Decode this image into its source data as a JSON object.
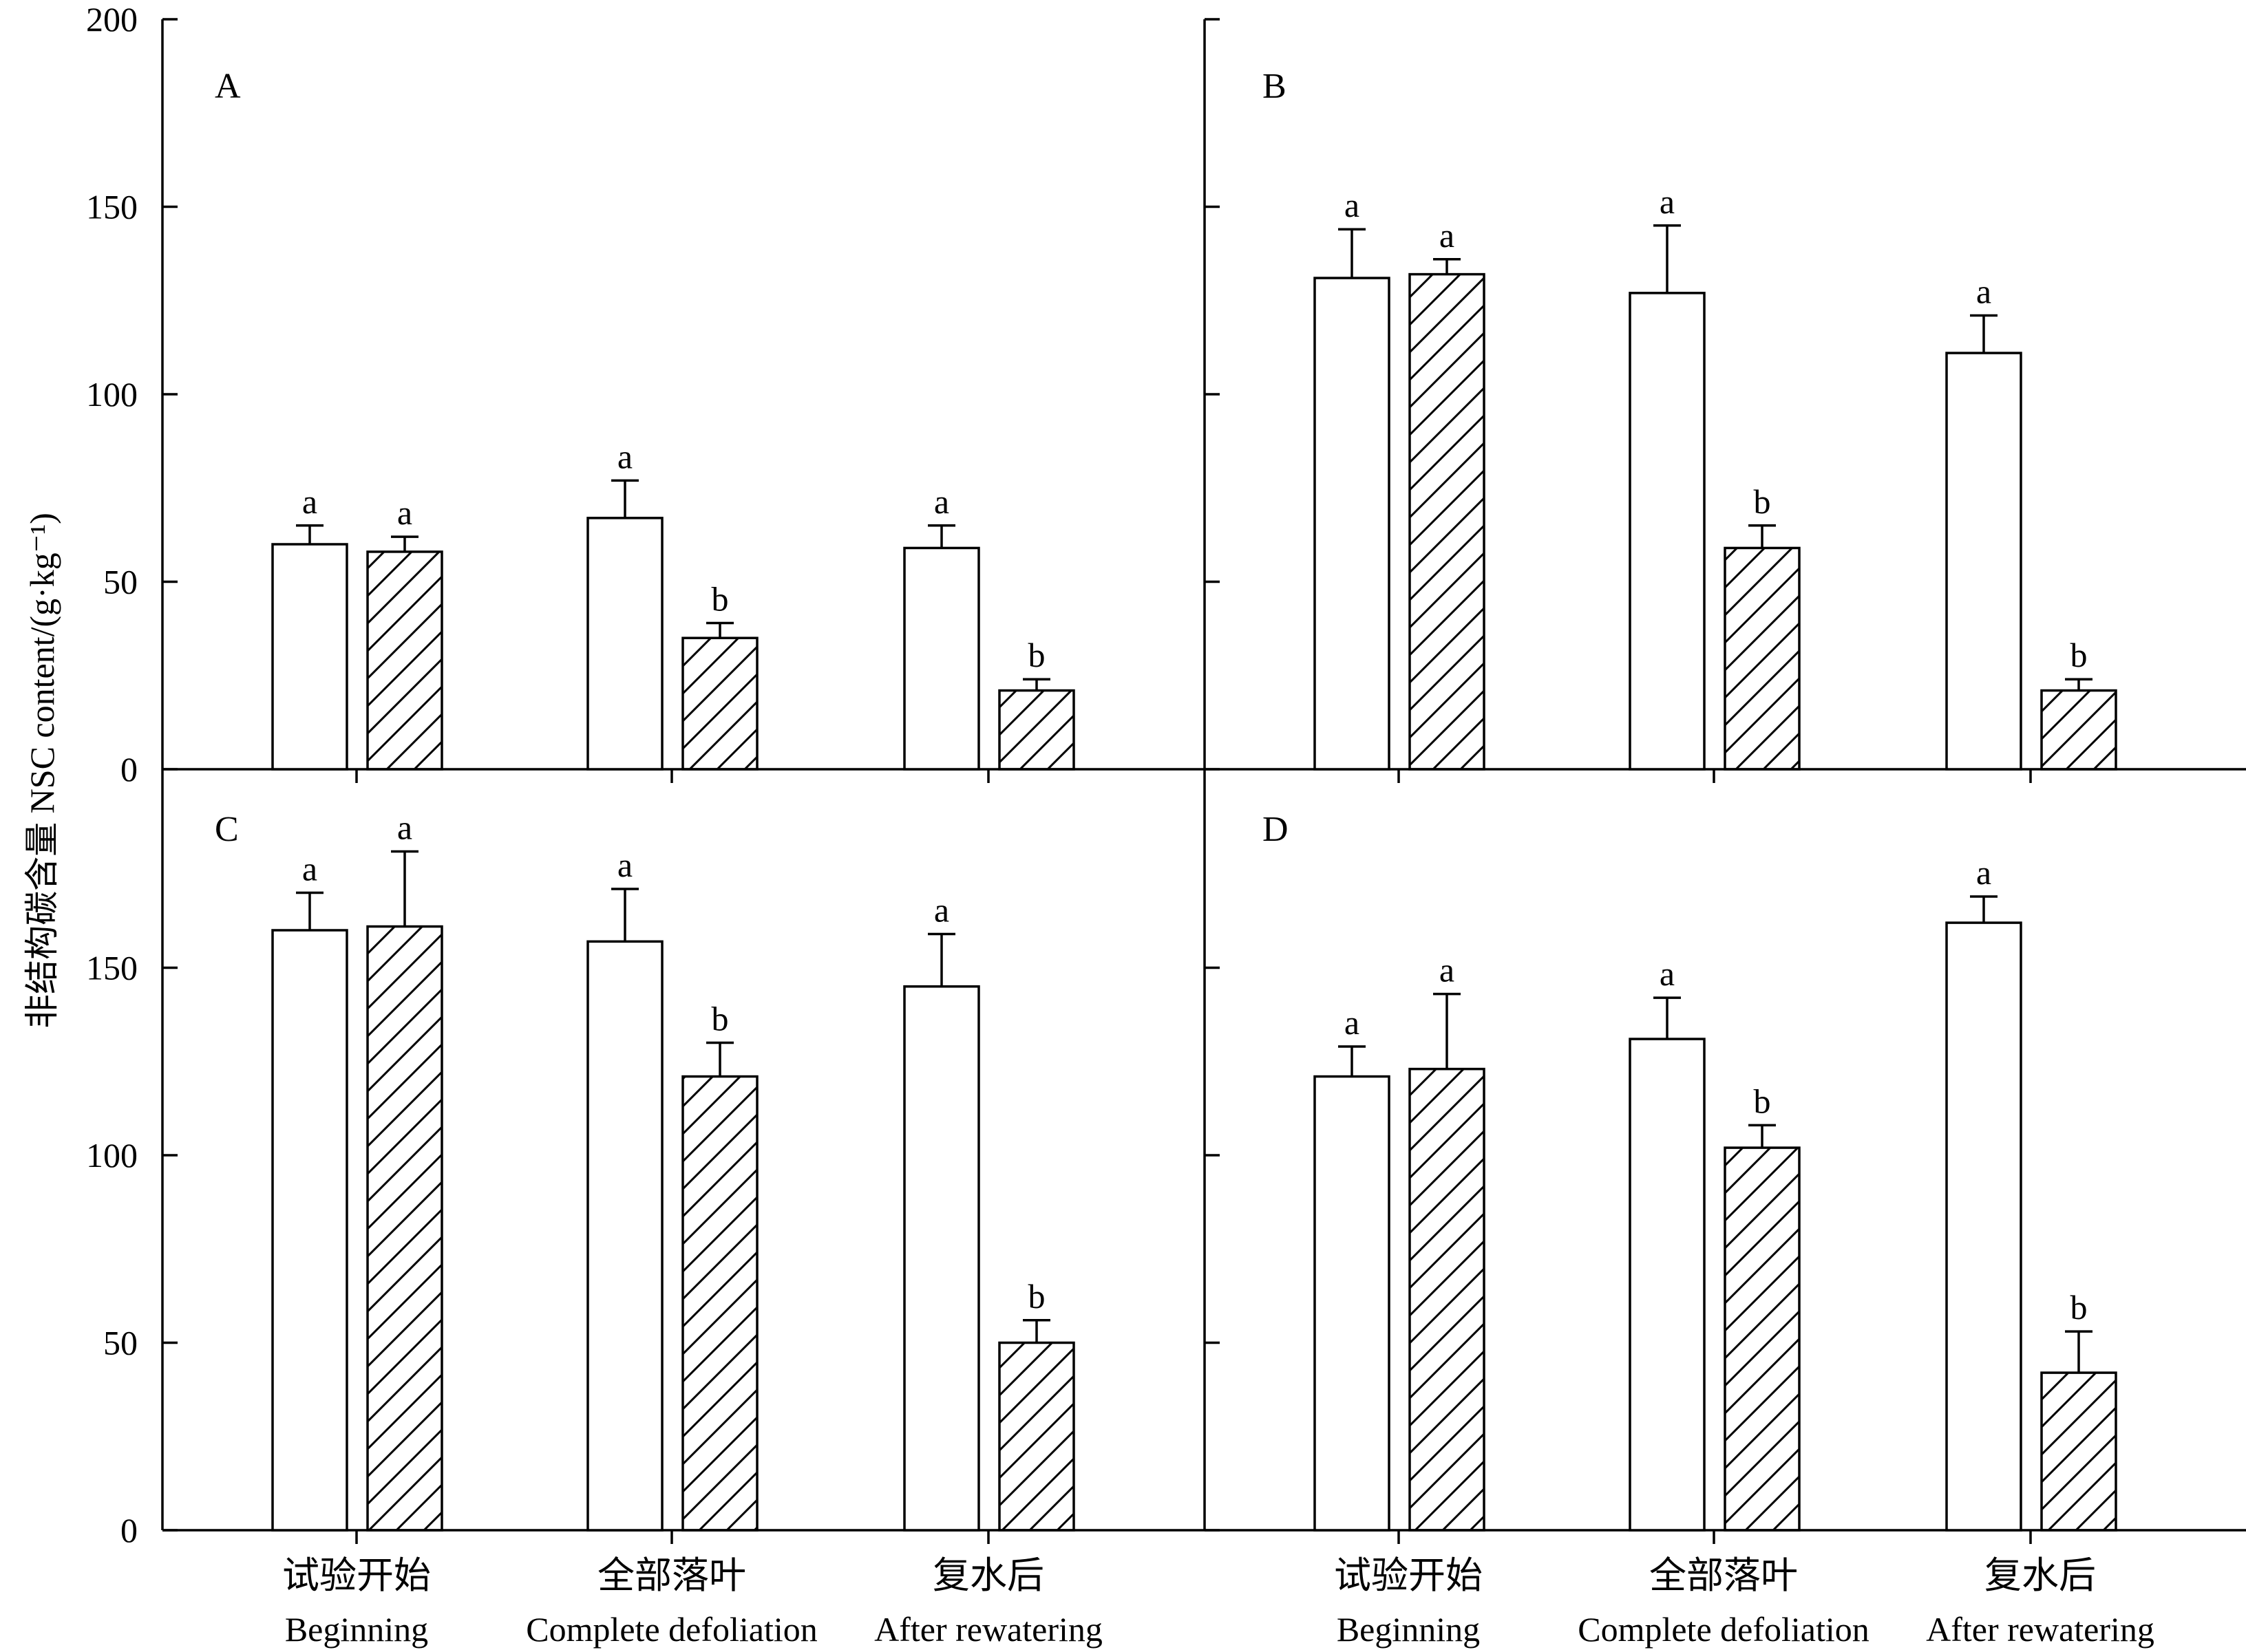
{
  "figure": {
    "y_axis_label": "非结构碳含量 NSC content/(g·kg⁻¹)",
    "groups": [
      {
        "zh": "试验开始",
        "en": "Beginning"
      },
      {
        "zh": "全部落叶",
        "en": "Complete defoliation"
      },
      {
        "zh": "复水后",
        "en": "After rewatering"
      }
    ]
  },
  "chart_data": [
    {
      "type": "bar",
      "panel": "A",
      "ylim": [
        0,
        200
      ],
      "yticks": [
        0,
        50,
        100,
        150,
        200
      ],
      "categories": [
        "试验开始 Beginning",
        "全部落叶 Complete defoliation",
        "复水后 After rewatering"
      ],
      "series": [
        {
          "name": "open bar",
          "fill": "open",
          "values": [
            60,
            67,
            59
          ],
          "errors": [
            5,
            10,
            6
          ],
          "letters": [
            "a",
            "a",
            "a"
          ]
        },
        {
          "name": "hatched bar",
          "fill": "hatched",
          "values": [
            58,
            35,
            21
          ],
          "errors": [
            4,
            4,
            3
          ],
          "letters": [
            "a",
            "b",
            "b"
          ]
        }
      ]
    },
    {
      "type": "bar",
      "panel": "B",
      "ylim": [
        0,
        200
      ],
      "yticks": [
        0,
        50,
        100,
        150,
        200
      ],
      "categories": [
        "试验开始 Beginning",
        "全部落叶 Complete defoliation",
        "复水后 After rewatering"
      ],
      "series": [
        {
          "name": "open bar",
          "fill": "open",
          "values": [
            131,
            127,
            111
          ],
          "errors": [
            13,
            18,
            10
          ],
          "letters": [
            "a",
            "a",
            "a"
          ]
        },
        {
          "name": "hatched bar",
          "fill": "hatched",
          "values": [
            132,
            59,
            21
          ],
          "errors": [
            4,
            6,
            3
          ],
          "letters": [
            "a",
            "b",
            "b"
          ]
        }
      ]
    },
    {
      "type": "bar",
      "panel": "C",
      "ylim": [
        0,
        200
      ],
      "yticks": [
        0,
        50,
        100,
        150
      ],
      "categories": [
        "试验开始 Beginning",
        "全部落叶 Complete defoliation",
        "复水后 After rewatering"
      ],
      "series": [
        {
          "name": "open bar",
          "fill": "open",
          "values": [
            160,
            157,
            145
          ],
          "errors": [
            10,
            14,
            14
          ],
          "letters": [
            "a",
            "a",
            "a"
          ]
        },
        {
          "name": "hatched bar",
          "fill": "hatched",
          "values": [
            161,
            121,
            50
          ],
          "errors": [
            20,
            9,
            6
          ],
          "letters": [
            "a",
            "b",
            "b"
          ]
        }
      ]
    },
    {
      "type": "bar",
      "panel": "D",
      "ylim": [
        0,
        200
      ],
      "yticks": [
        0,
        50,
        100,
        150
      ],
      "categories": [
        "试验开始 Beginning",
        "全部落叶 Complete defoliation",
        "复水后 After rewatering"
      ],
      "series": [
        {
          "name": "open bar",
          "fill": "open",
          "values": [
            121,
            131,
            162
          ],
          "errors": [
            8,
            11,
            7
          ],
          "letters": [
            "a",
            "a",
            "a"
          ]
        },
        {
          "name": "hatched bar",
          "fill": "hatched",
          "values": [
            123,
            102,
            42
          ],
          "errors": [
            20,
            6,
            11
          ],
          "letters": [
            "a",
            "b",
            "b"
          ]
        }
      ]
    }
  ]
}
